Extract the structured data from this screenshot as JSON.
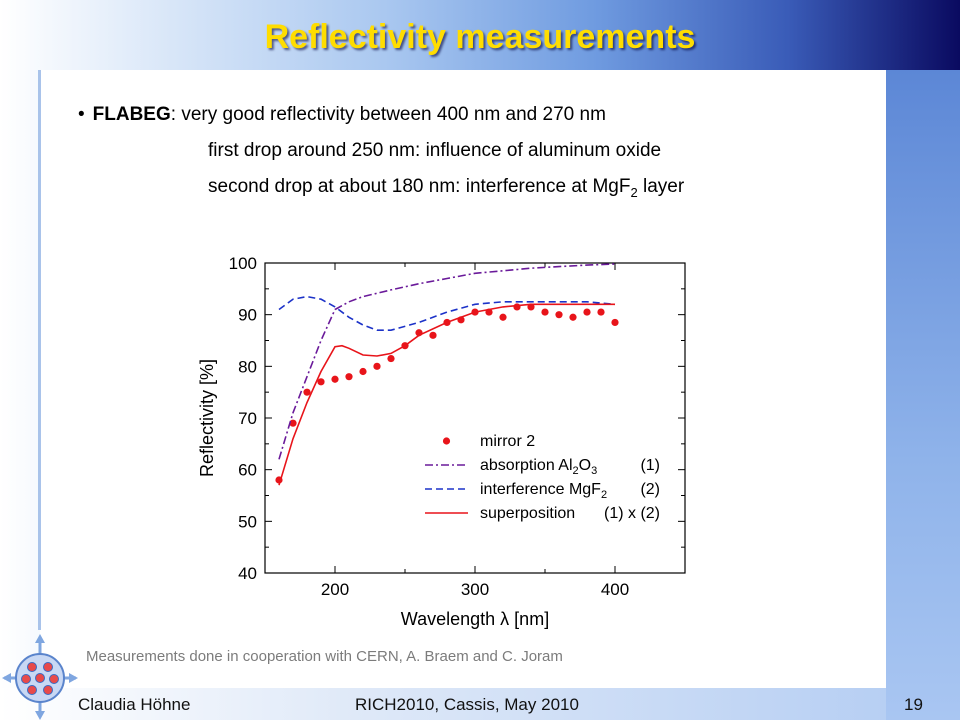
{
  "slide": {
    "title": "Reflectivity measurements",
    "bullet": {
      "lead": "FLABEG",
      "line1_rest": ": very good reflectivity between 400 nm and 270 nm",
      "line2": "first drop around 250 nm: influence of aluminum oxide",
      "line3_pre": "second drop at about 180 nm: interference at MgF",
      "line3_sub": "2",
      "line3_post": " layer"
    },
    "caption": "Measurements done in cooperation with CERN, A. Braem and C. Joram",
    "footer": {
      "author": "Claudia Höhne",
      "conference": "RICH2010, Cassis, May 2010",
      "page": "19"
    }
  },
  "chart_data": {
    "type": "line",
    "xlabel": "Wavelength λ [nm]",
    "ylabel": "Reflectivity [%]",
    "xlim": [
      150,
      450
    ],
    "ylim": [
      40,
      100
    ],
    "xticks": [
      200,
      300,
      400
    ],
    "yticks": [
      40,
      50,
      60,
      70,
      80,
      90,
      100
    ],
    "grid": false,
    "legend_position": "bottom-right",
    "series": [
      {
        "name": "mirror 2",
        "kind": "scatter",
        "color": "#e8141a",
        "x": [
          160,
          170,
          180,
          190,
          200,
          210,
          220,
          230,
          240,
          250,
          260,
          270,
          280,
          290,
          300,
          310,
          320,
          330,
          340,
          350,
          360,
          370,
          380,
          390,
          400
        ],
        "y": [
          58,
          69,
          75,
          77,
          77.5,
          78,
          79,
          80,
          81.5,
          84,
          86.5,
          86,
          88.5,
          89,
          90.5,
          90.5,
          89.5,
          91.5,
          91.5,
          90.5,
          90,
          89.5,
          90.5,
          90.5,
          88.5
        ]
      },
      {
        "name": "absorption Al2O3",
        "legend_main": "absorption Al",
        "legend_sub1": "2",
        "legend_mid": "O",
        "legend_sub2": "3",
        "legend_tag": "(1)",
        "kind": "line",
        "dash": "dashdot",
        "color": "#6a1a9a",
        "x": [
          160,
          170,
          180,
          190,
          200,
          210,
          220,
          240,
          260,
          280,
          300,
          320,
          340,
          360,
          380,
          400
        ],
        "y": [
          62,
          71,
          78,
          85,
          91,
          92.5,
          93.5,
          94.8,
          96,
          97,
          98,
          98.5,
          99,
          99.3,
          99.6,
          99.8
        ]
      },
      {
        "name": "interference MgF2",
        "legend_main": "interference MgF",
        "legend_sub1": "2",
        "legend_tag": "(2)",
        "kind": "line",
        "dash": "dashed",
        "color": "#1c32c8",
        "x": [
          160,
          170,
          180,
          190,
          200,
          210,
          220,
          230,
          240,
          260,
          280,
          300,
          320,
          340,
          360,
          380,
          400
        ],
        "y": [
          91,
          93,
          93.5,
          93,
          91.5,
          89.5,
          88,
          87,
          87,
          88.5,
          90.5,
          92,
          92.5,
          92.5,
          92.5,
          92.5,
          92
        ]
      },
      {
        "name": "superposition",
        "legend_main": "superposition",
        "legend_tag": "(1) x (2)",
        "kind": "line",
        "dash": "solid",
        "color": "#e8141a",
        "x": [
          160,
          170,
          180,
          190,
          200,
          205,
          210,
          220,
          230,
          240,
          250,
          260,
          280,
          300,
          320,
          340,
          360,
          380,
          400
        ],
        "y": [
          57,
          66,
          73,
          79,
          83.8,
          84,
          83.5,
          82.2,
          82,
          82.5,
          84,
          86,
          88.5,
          90.5,
          91.5,
          92,
          92,
          92,
          92
        ]
      }
    ]
  }
}
